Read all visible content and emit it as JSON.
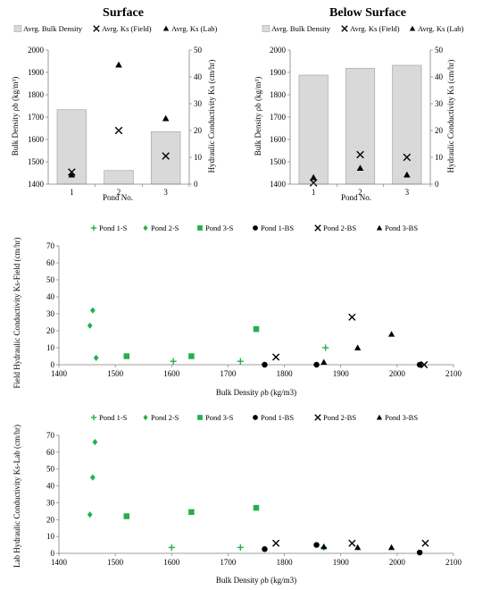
{
  "colors": {
    "bar_fill": "#d9d9d9",
    "bar_stroke": "#a6a6a6",
    "green": "#22b14c",
    "black": "#000000",
    "axis": "#7f7f7f"
  },
  "chart_data": [
    {
      "type": "bar",
      "title": "Surface",
      "xlabel": "Pond No.",
      "ylabel": "Bulk Density ρb (kg/m³)",
      "y2label": "Hydraulic Conductivity Ks (cm/hr)",
      "categories": [
        "1",
        "2",
        "3"
      ],
      "ylim": [
        1400,
        2000
      ],
      "y2lim": [
        0,
        50
      ],
      "yticks": [
        1400,
        1500,
        1600,
        1700,
        1800,
        1900,
        2000
      ],
      "y2ticks": [
        0,
        10,
        20,
        30,
        40,
        50
      ],
      "legend": [
        "Avrg. Bulk Density",
        "Avrg. Ks (Field)",
        "Avrg. Ks (Lab)"
      ],
      "series": [
        {
          "name": "Avrg. Bulk Density",
          "kind": "bar",
          "axis": "left",
          "values": [
            1733,
            1461,
            1635
          ]
        },
        {
          "name": "Avrg. Ks (Field)",
          "kind": "x",
          "axis": "right",
          "values": [
            4.5,
            20,
            10.5
          ]
        },
        {
          "name": "Avrg. Ks (Lab)",
          "kind": "triangle",
          "axis": "right",
          "values": [
            3.5,
            44.5,
            24.5
          ]
        }
      ]
    },
    {
      "type": "bar",
      "title": "Below Surface",
      "xlabel": "Pond No.",
      "ylabel": "Bulk Density ρb (kg/m³)",
      "y2label": "Hydraulic Conductivity Ks (cm/hr)",
      "categories": [
        "1",
        "2",
        "3"
      ],
      "ylim": [
        1400,
        2000
      ],
      "y2lim": [
        0,
        50
      ],
      "yticks": [
        1400,
        1500,
        1600,
        1700,
        1800,
        1900,
        2000
      ],
      "y2ticks": [
        0,
        10,
        20,
        30,
        40,
        50
      ],
      "legend": [
        "Avrg. Bulk Density",
        "Avrg. Ks (Field)",
        "Avrg. Ks (Lab)"
      ],
      "series": [
        {
          "name": "Avrg. Bulk Density",
          "kind": "bar",
          "axis": "left",
          "values": [
            1888,
            1918,
            1932
          ]
        },
        {
          "name": "Avrg. Ks (Field)",
          "kind": "x",
          "axis": "right",
          "values": [
            0.5,
            11,
            10
          ]
        },
        {
          "name": "Avrg. Ks (Lab)",
          "kind": "triangle",
          "axis": "right",
          "values": [
            2.5,
            6,
            3.5
          ]
        }
      ]
    },
    {
      "type": "scatter",
      "xlabel": "Bulk Density ρb (kg/m3)",
      "ylabel": "Field Hydraulic Conductivity Ks-Field (cm/hr)",
      "xlim": [
        1400,
        2100
      ],
      "ylim": [
        0,
        70
      ],
      "xticks": [
        1400,
        1500,
        1600,
        1700,
        1800,
        1900,
        2000,
        2100
      ],
      "yticks": [
        0,
        10,
        20,
        30,
        40,
        50,
        60,
        70
      ],
      "series": [
        {
          "name": "Pond 1-S",
          "marker": "plus",
          "color": "#22b14c",
          "points": [
            [
              1603,
              2
            ],
            [
              1722,
              2
            ],
            [
              1873,
              10
            ]
          ]
        },
        {
          "name": "Pond 2-S",
          "marker": "diamond",
          "color": "#22b14c",
          "points": [
            [
              1455,
              23
            ],
            [
              1460,
              32
            ],
            [
              1466,
              4
            ]
          ]
        },
        {
          "name": "Pond 3-S",
          "marker": "square",
          "color": "#22b14c",
          "points": [
            [
              1520,
              5
            ],
            [
              1635,
              5
            ],
            [
              1750,
              21
            ]
          ]
        },
        {
          "name": "Pond 1-BS",
          "marker": "circle",
          "color": "#000000",
          "points": [
            [
              1765,
              0
            ],
            [
              1857,
              0
            ],
            [
              2040,
              0
            ]
          ]
        },
        {
          "name": "Pond 2-BS",
          "marker": "x",
          "color": "#000000",
          "points": [
            [
              1785,
              4.5
            ],
            [
              1920,
              28
            ],
            [
              2048,
              0
            ]
          ]
        },
        {
          "name": "Pond 3-BS",
          "marker": "triangle",
          "color": "#000000",
          "points": [
            [
              1870,
              1.5
            ],
            [
              1930,
              10
            ],
            [
              1990,
              18
            ]
          ]
        }
      ]
    },
    {
      "type": "scatter",
      "xlabel": "Bulk Density ρb (kg/m3)",
      "ylabel": "Lab Hydraulic Conductivity Ks-Lab (cm/hr)",
      "xlim": [
        1400,
        2100
      ],
      "ylim": [
        0,
        70
      ],
      "xticks": [
        1400,
        1500,
        1600,
        1700,
        1800,
        1900,
        2000,
        2100
      ],
      "yticks": [
        0,
        10,
        20,
        30,
        40,
        50,
        60,
        70
      ],
      "series": [
        {
          "name": "Pond 1-S",
          "marker": "plus",
          "color": "#22b14c",
          "points": [
            [
              1600,
              3.5
            ],
            [
              1722,
              3.5
            ],
            [
              1870,
              3.5
            ]
          ]
        },
        {
          "name": "Pond 2-S",
          "marker": "diamond",
          "color": "#22b14c",
          "points": [
            [
              1455,
              23
            ],
            [
              1460,
              45
            ],
            [
              1464,
              66
            ]
          ]
        },
        {
          "name": "Pond 3-S",
          "marker": "square",
          "color": "#22b14c",
          "points": [
            [
              1520,
              22
            ],
            [
              1635,
              24.5
            ],
            [
              1750,
              27
            ]
          ]
        },
        {
          "name": "Pond 1-BS",
          "marker": "circle",
          "color": "#000000",
          "points": [
            [
              1765,
              2.5
            ],
            [
              1857,
              5
            ],
            [
              2040,
              0.5
            ]
          ]
        },
        {
          "name": "Pond 2-BS",
          "marker": "x",
          "color": "#000000",
          "points": [
            [
              1785,
              6
            ],
            [
              1920,
              6
            ],
            [
              2050,
              6
            ]
          ]
        },
        {
          "name": "Pond 3-BS",
          "marker": "triangle",
          "color": "#000000",
          "points": [
            [
              1870,
              4
            ],
            [
              1930,
              3.5
            ],
            [
              1990,
              3.5
            ]
          ]
        }
      ]
    }
  ]
}
